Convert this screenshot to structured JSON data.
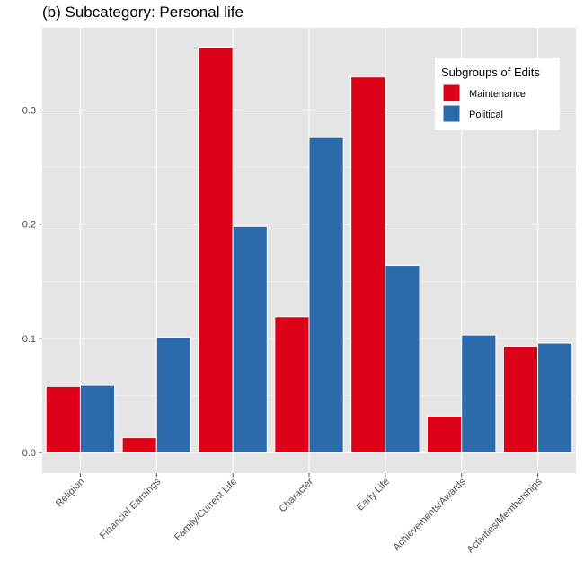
{
  "chart_data": {
    "type": "bar",
    "title": "(b) Subcategory: Personal life",
    "xlabel": "",
    "ylabel": "",
    "categories": [
      "Religion",
      "Financial Earnings",
      "Family/Current Life",
      "Character",
      "Early Life",
      "Achievements/Awards",
      "Activities/Memberships"
    ],
    "series": [
      {
        "name": "Maintenance",
        "color": "#dc0018",
        "values": [
          0.058,
          0.013,
          0.355,
          0.119,
          0.329,
          0.032,
          0.093
        ]
      },
      {
        "name": "Political",
        "color": "#2b6aab",
        "values": [
          0.059,
          0.101,
          0.198,
          0.276,
          0.164,
          0.103,
          0.096
        ]
      }
    ],
    "ylim": [
      -0.018,
      0.372
    ],
    "yticks": [
      0.0,
      0.1,
      0.2,
      0.3
    ],
    "ytick_labels": [
      "0.0",
      "0.1",
      "0.2",
      "0.3"
    ],
    "grid": true,
    "panel_background": "#e5e5e5",
    "legend": {
      "title": "Subgroups of Edits",
      "position": "top-right"
    }
  }
}
